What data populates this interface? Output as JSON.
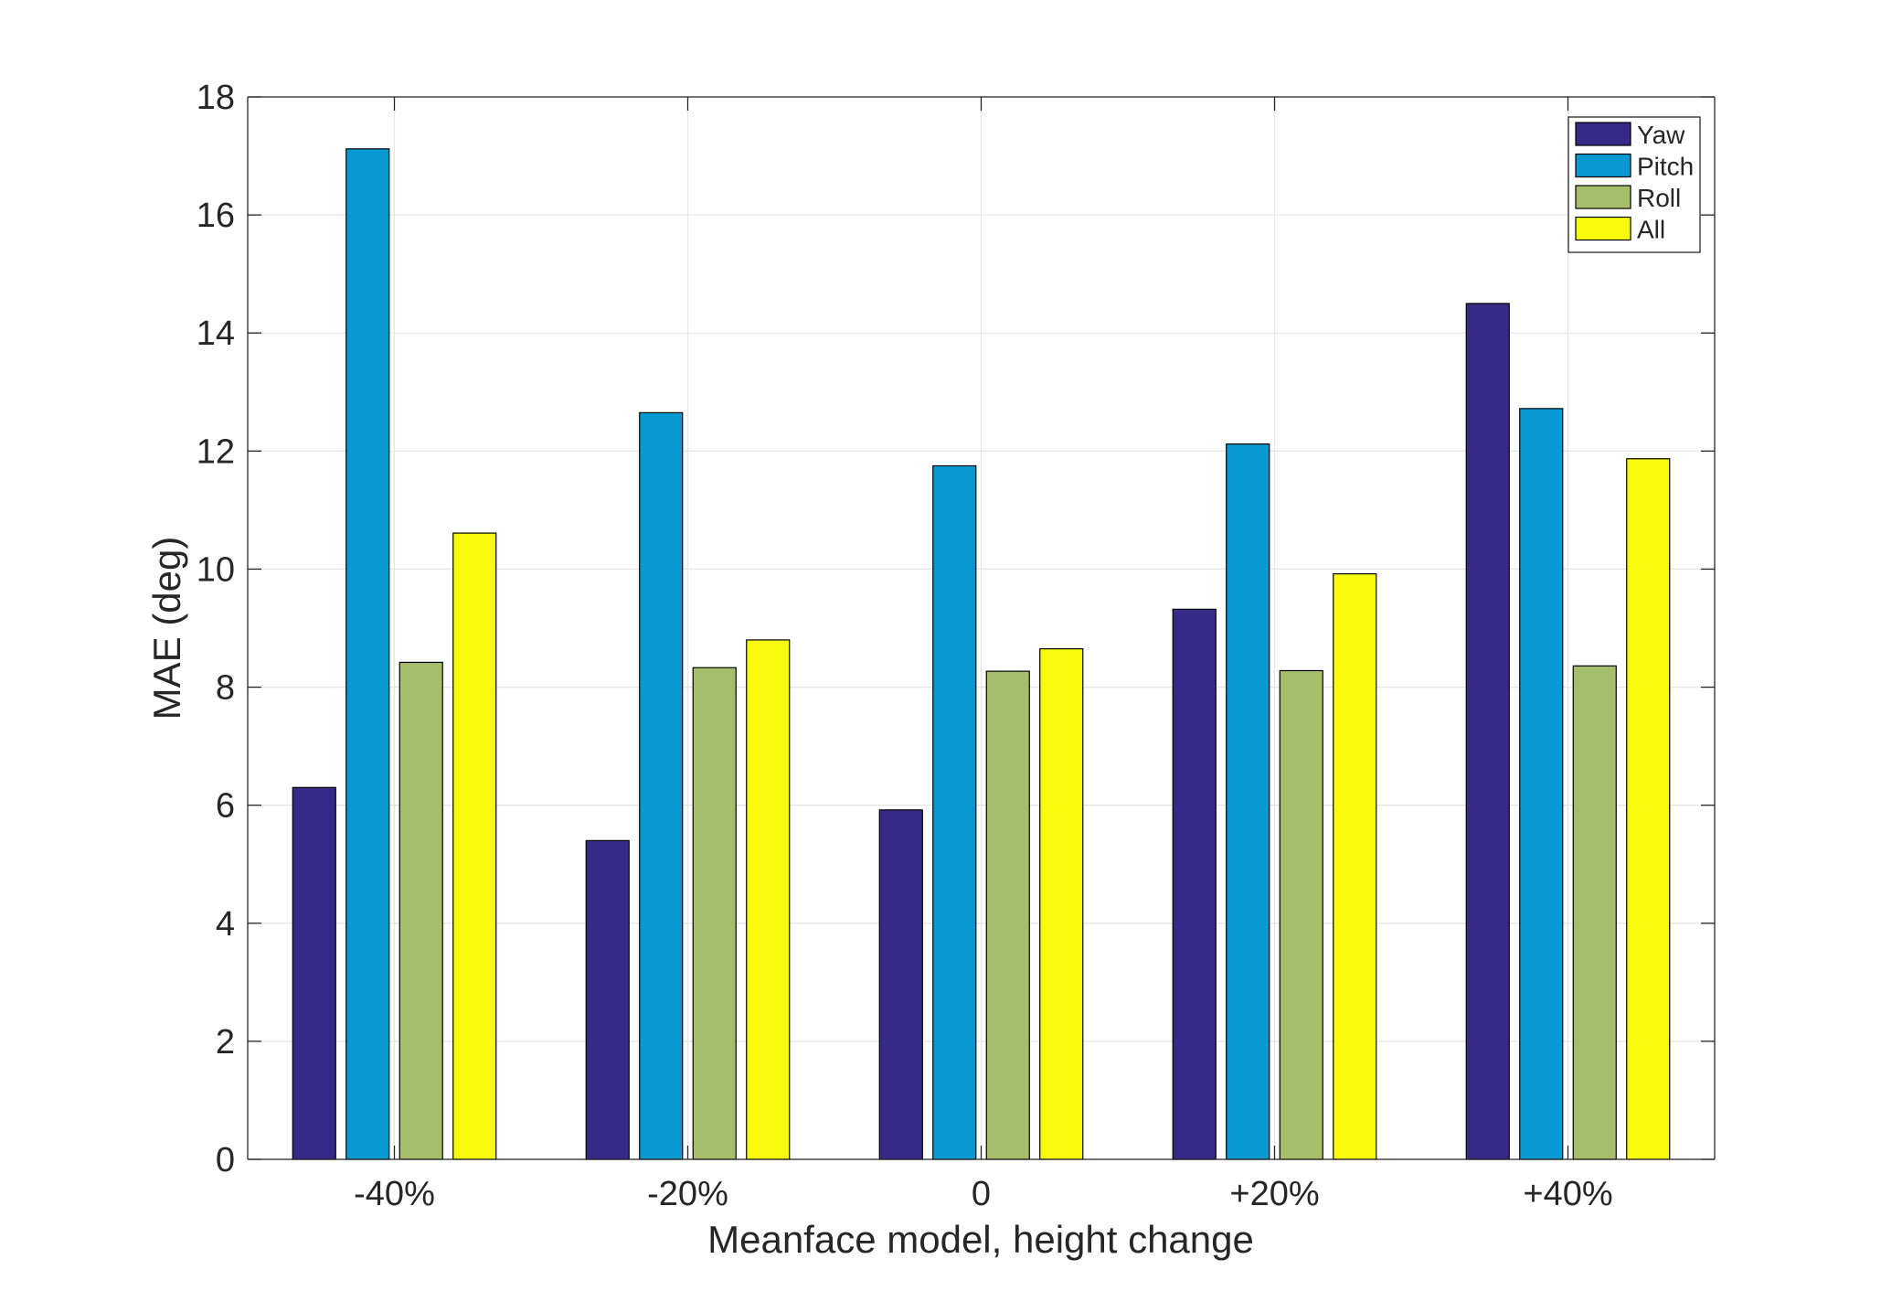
{
  "chart_data": {
    "type": "bar",
    "categories": [
      "-40%",
      "-20%",
      "0",
      "+20%",
      "+40%"
    ],
    "series": [
      {
        "name": "Yaw",
        "color": "#352a87",
        "values": [
          6.3,
          5.4,
          5.92,
          9.32,
          14.5
        ]
      },
      {
        "name": "Pitch",
        "color": "#0899d1",
        "values": [
          17.12,
          12.65,
          11.75,
          12.12,
          12.72
        ]
      },
      {
        "name": "Roll",
        "color": "#a5be6a",
        "values": [
          8.42,
          8.33,
          8.27,
          8.28,
          8.36
        ]
      },
      {
        "name": "All",
        "color": "#f8fa0d",
        "values": [
          10.61,
          8.8,
          8.65,
          9.92,
          11.87
        ]
      }
    ],
    "xlabel": "Meanface model, height change",
    "ylabel": "MAE (deg)",
    "ylim": [
      0,
      18
    ],
    "yticks": [
      "0",
      "2",
      "4",
      "6",
      "8",
      "10",
      "12",
      "14",
      "16",
      "18"
    ],
    "grid": true,
    "legend_position": "top-right"
  }
}
